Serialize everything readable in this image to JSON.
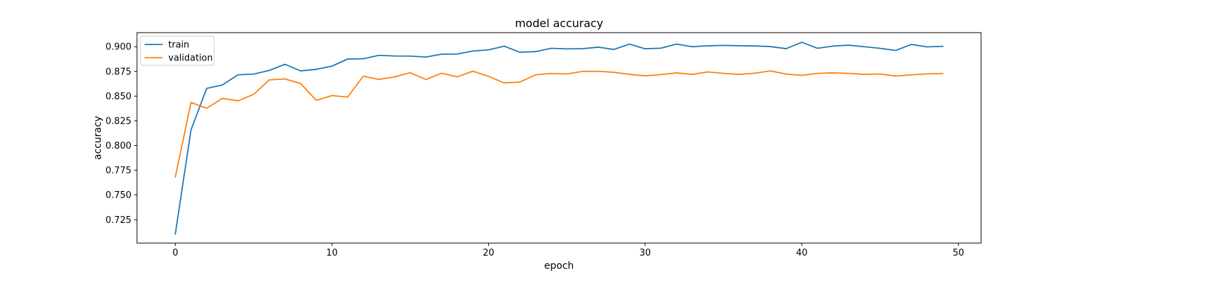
{
  "chart_data": {
    "type": "line",
    "title": "model accuracy",
    "xlabel": "epoch",
    "ylabel": "accuracy",
    "xlim": [
      -2.45,
      51.45
    ],
    "ylim": [
      0.7013,
      0.9142
    ],
    "xticks": [
      0,
      10,
      20,
      30,
      40,
      50
    ],
    "xtick_labels": [
      "0",
      "10",
      "20",
      "30",
      "40",
      "50"
    ],
    "yticks": [
      0.725,
      0.75,
      0.775,
      0.8,
      0.825,
      0.85,
      0.875,
      0.9
    ],
    "ytick_labels": [
      "0.725",
      "0.750",
      "0.775",
      "0.800",
      "0.825",
      "0.850",
      "0.875",
      "0.900"
    ],
    "grid": false,
    "legend_position": "upper-left",
    "x": [
      0,
      1,
      2,
      3,
      4,
      5,
      6,
      7,
      8,
      9,
      10,
      11,
      12,
      13,
      14,
      15,
      16,
      17,
      18,
      19,
      20,
      21,
      22,
      23,
      24,
      25,
      26,
      27,
      28,
      29,
      30,
      31,
      32,
      33,
      34,
      35,
      36,
      37,
      38,
      39,
      40,
      41,
      42,
      43,
      44,
      45,
      46,
      47,
      48,
      49
    ],
    "series": [
      {
        "name": "train",
        "color": "#1f77b4",
        "values": [
          0.7107,
          0.8158,
          0.8578,
          0.8612,
          0.8715,
          0.8723,
          0.876,
          0.8822,
          0.8755,
          0.8771,
          0.8803,
          0.8875,
          0.8878,
          0.8913,
          0.8906,
          0.8905,
          0.8895,
          0.8924,
          0.8926,
          0.8956,
          0.8968,
          0.9005,
          0.8944,
          0.895,
          0.8984,
          0.8978,
          0.898,
          0.8995,
          0.8972,
          0.9026,
          0.8979,
          0.8985,
          0.9026,
          0.9,
          0.9009,
          0.9013,
          0.901,
          0.9007,
          0.9001,
          0.898,
          0.9045,
          0.8984,
          0.9006,
          0.9015,
          0.9,
          0.8983,
          0.8962,
          0.9023,
          0.8998,
          0.9004
        ]
      },
      {
        "name": "validation",
        "color": "#ff7f0e",
        "values": [
          0.7683,
          0.8436,
          0.8377,
          0.8477,
          0.8452,
          0.8518,
          0.8664,
          0.8674,
          0.8627,
          0.8457,
          0.8505,
          0.849,
          0.8702,
          0.8669,
          0.8695,
          0.8737,
          0.8668,
          0.8732,
          0.8695,
          0.8752,
          0.87,
          0.8633,
          0.8642,
          0.8715,
          0.8729,
          0.8724,
          0.875,
          0.8751,
          0.8741,
          0.872,
          0.8705,
          0.8718,
          0.8735,
          0.872,
          0.8745,
          0.873,
          0.872,
          0.8732,
          0.8755,
          0.8723,
          0.871,
          0.873,
          0.8735,
          0.873,
          0.872,
          0.8724,
          0.8703,
          0.8715,
          0.8725,
          0.8729
        ]
      }
    ]
  }
}
